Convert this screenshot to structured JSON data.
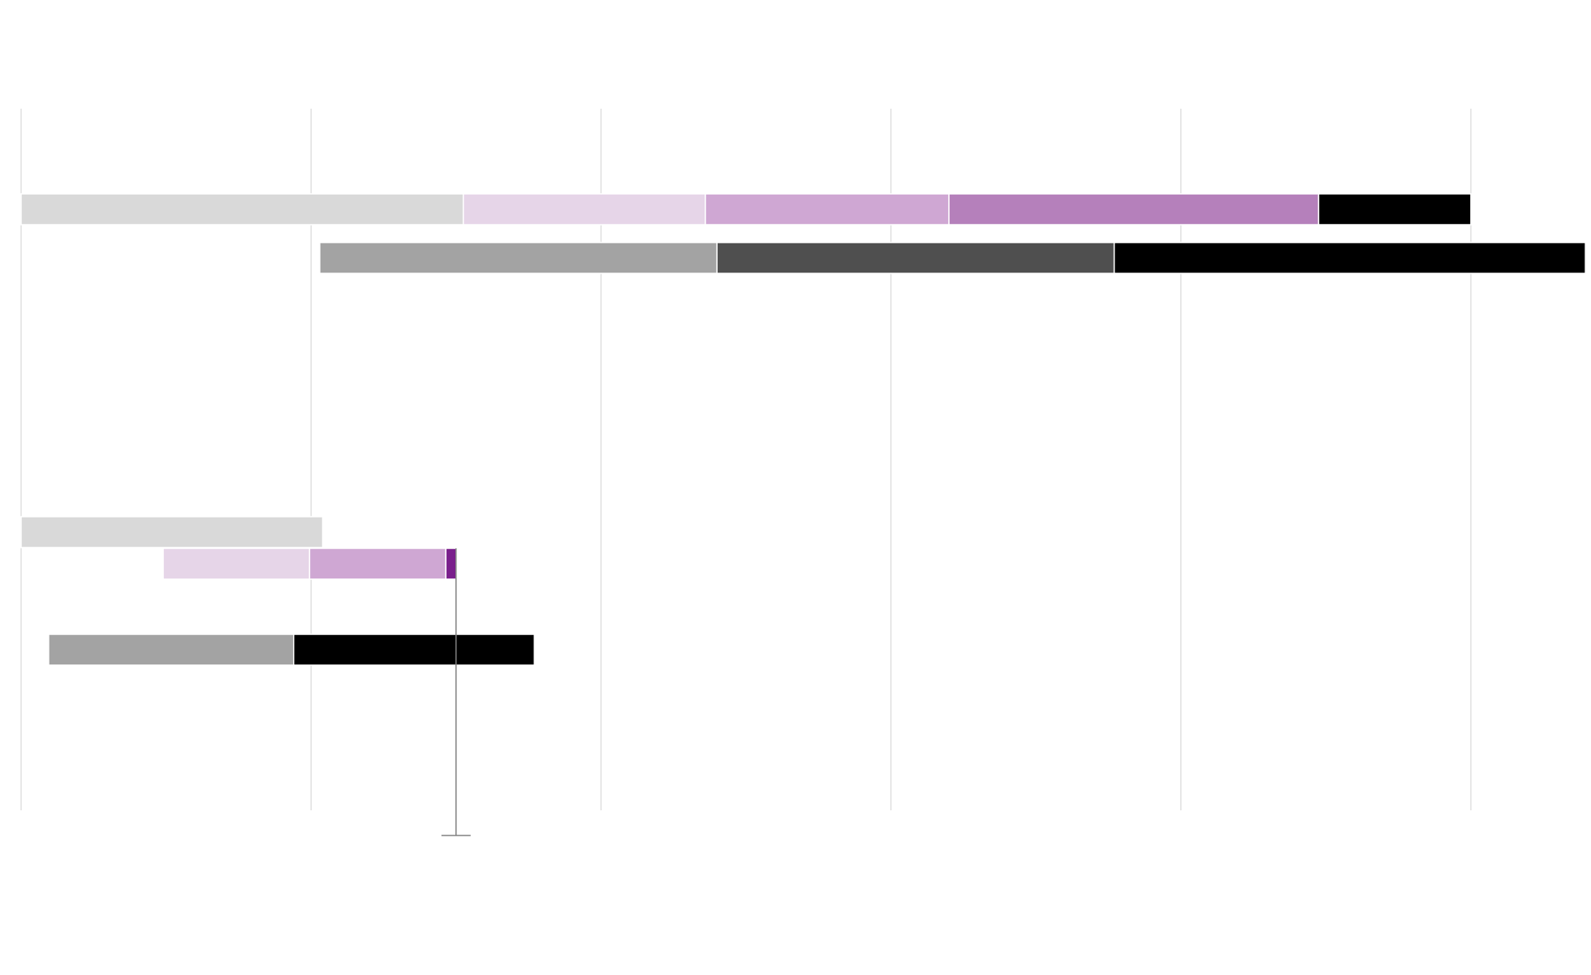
{
  "chart_data": {
    "type": "bar",
    "orientation": "horizontal",
    "stacked": true,
    "grid": true,
    "gridline_count": 6,
    "xlim": [
      0,
      100
    ],
    "title": "",
    "xlabel": "",
    "ylabel": "",
    "colors": {
      "gray_light": "#d9d9d9",
      "lilac_1": "#e6d5e8",
      "lilac_2": "#cfa7d3",
      "lilac_3": "#b580bb",
      "black": "#000000",
      "gray_mid": "#a3a3a3",
      "gray_dark": "#4f4f4f",
      "purple_marker": "#7a1f8c",
      "grid": "#d9d9d9",
      "marker_line": "#808080"
    },
    "bars": [
      {
        "id": "bar-1",
        "segments": [
          {
            "from": 0,
            "to": 30.5,
            "color": "gray_light"
          },
          {
            "from": 30.5,
            "to": 47.2,
            "color": "lilac_1"
          },
          {
            "from": 47.2,
            "to": 64.0,
            "color": "lilac_2"
          },
          {
            "from": 64.0,
            "to": 89.5,
            "color": "lilac_3"
          },
          {
            "from": 89.5,
            "to": 100.0,
            "color": "black"
          }
        ]
      },
      {
        "id": "bar-2",
        "segments": [
          {
            "from": 20.6,
            "to": 48.0,
            "color": "gray_mid"
          },
          {
            "from": 48.0,
            "to": 75.4,
            "color": "gray_dark"
          },
          {
            "from": 75.4,
            "to": 107.9,
            "color": "black"
          }
        ]
      },
      {
        "id": "bar-3",
        "segments": [
          {
            "from": 0,
            "to": 20.8,
            "color": "gray_light"
          }
        ]
      },
      {
        "id": "bar-4",
        "segments": [
          {
            "from": 9.8,
            "to": 19.9,
            "color": "lilac_1"
          },
          {
            "from": 19.9,
            "to": 29.3,
            "color": "lilac_2"
          },
          {
            "from": 29.3,
            "to": 30.0,
            "color": "purple_marker"
          }
        ]
      },
      {
        "id": "bar-5",
        "segments": [
          {
            "from": 1.9,
            "to": 18.8,
            "color": "gray_mid"
          },
          {
            "from": 18.8,
            "to": 35.4,
            "color": "black"
          }
        ]
      }
    ],
    "reference_marker": {
      "x": 30.0
    }
  }
}
